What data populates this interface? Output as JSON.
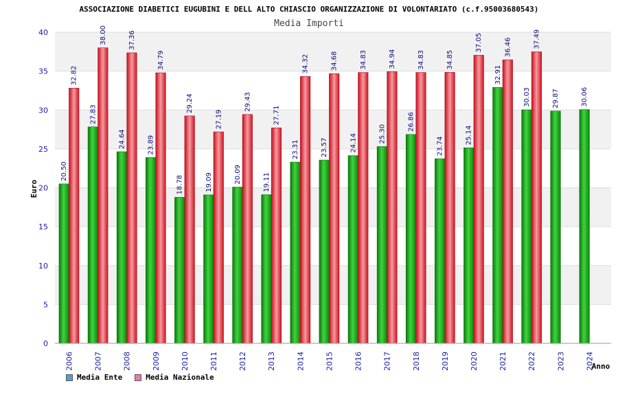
{
  "colors": {
    "ente_bar": "#16b416",
    "nazionale_bar": "#e8303c",
    "ente_swatch": "#5b9bd5",
    "nazionale_swatch": "#e87ab0",
    "band": "#f1f1f1"
  },
  "chart_data": {
    "type": "bar",
    "title": "ASSOCIAZIONE DIABETICI EUGUBINI E DELL ALTO CHIASCIO ORGANIZZAZIONE DI VOLONTARIATO (c.f.95003680543)",
    "subtitle": "Media Importi",
    "xlabel": "Anno",
    "ylabel": "Euro",
    "ylim": [
      0,
      40
    ],
    "yticks": [
      0,
      5,
      10,
      15,
      20,
      25,
      30,
      35,
      40
    ],
    "grid": true,
    "categories": [
      "2006",
      "2007",
      "2008",
      "2009",
      "2010",
      "2011",
      "2012",
      "2013",
      "2014",
      "2015",
      "2016",
      "2017",
      "2018",
      "2019",
      "2020",
      "2021",
      "2022",
      "2023",
      "2024"
    ],
    "series": [
      {
        "name": "Media Ente",
        "values": [
          20.5,
          27.83,
          24.64,
          23.89,
          18.78,
          19.09,
          20.09,
          19.11,
          23.31,
          23.57,
          24.14,
          25.3,
          26.86,
          23.74,
          25.14,
          32.91,
          30.03,
          29.87,
          30.06
        ],
        "labels": [
          "20.50",
          "27.83",
          "24.64",
          "23.89",
          "18.78",
          "19.09",
          "20.09",
          "19.11",
          "23.31",
          "23.57",
          "24.14",
          "25.30",
          "26.86",
          "23.74",
          "25.14",
          "32.91",
          "30.03",
          "29.87",
          "30.06"
        ]
      },
      {
        "name": "Media Nazionale",
        "values": [
          32.82,
          38.0,
          37.36,
          34.79,
          29.24,
          27.19,
          29.43,
          27.71,
          34.32,
          34.68,
          34.83,
          34.94,
          34.83,
          34.85,
          37.05,
          36.46,
          37.49,
          null,
          null
        ],
        "labels": [
          "32.82",
          "38.00",
          "37.36",
          "34.79",
          "29.24",
          "27.19",
          "29.43",
          "27.71",
          "34.32",
          "34.68",
          "34.83",
          "34.94",
          "34.83",
          "34.85",
          "37.05",
          "36.46",
          "37.49",
          "",
          ""
        ]
      }
    ],
    "legend": [
      "Media Ente",
      "Media Nazionale"
    ]
  }
}
